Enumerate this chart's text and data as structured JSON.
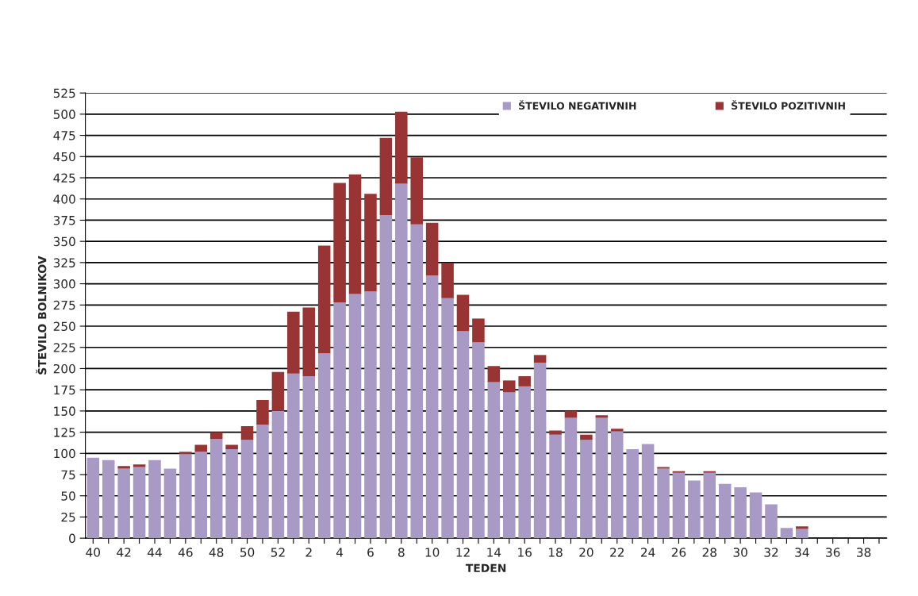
{
  "chart_data": {
    "type": "bar",
    "stacked": true,
    "xlabel": "TEDEN",
    "ylabel": "ŠTEVILO BOLNIKOV",
    "categories": [
      "40",
      null,
      "42",
      null,
      "44",
      null,
      "46",
      null,
      "48",
      null,
      "50",
      null,
      "52",
      null,
      "2",
      null,
      "4",
      null,
      "6",
      null,
      "8",
      null,
      "10",
      null,
      "12",
      null,
      "14",
      null,
      "16",
      null,
      "18",
      null,
      "20",
      null,
      "22",
      null,
      "24",
      null,
      "26",
      null,
      "28",
      null,
      "30",
      null,
      "32",
      null,
      "34",
      null,
      "36",
      null,
      "38",
      null
    ],
    "series": [
      {
        "name": "ŠTEVILO NEGATIVNIH",
        "color": "#a899c5",
        "values": [
          95,
          92,
          82,
          84,
          92,
          82,
          99,
          102,
          117,
          105,
          116,
          134,
          150,
          194,
          191,
          218,
          278,
          288,
          291,
          381,
          418,
          370,
          310,
          283,
          244,
          231,
          184,
          172,
          179,
          207,
          122,
          142,
          116,
          142,
          126,
          105,
          111,
          82,
          77,
          68,
          77,
          64,
          60,
          54,
          40,
          12,
          11,
          0,
          0,
          0,
          0,
          0
        ]
      },
      {
        "name": "ŠTEVILO POZITIVNIH",
        "color": "#983534",
        "values": [
          0,
          0,
          3,
          3,
          0,
          0,
          3,
          8,
          8,
          5,
          16,
          29,
          46,
          73,
          81,
          127,
          141,
          141,
          115,
          91,
          85,
          79,
          62,
          41,
          43,
          28,
          19,
          14,
          12,
          9,
          5,
          8,
          6,
          3,
          3,
          0,
          0,
          2,
          2,
          0,
          2,
          0,
          0,
          0,
          0,
          0,
          3,
          0,
          0,
          0,
          0,
          0
        ]
      }
    ],
    "ylim": [
      0,
      525
    ],
    "yticks": [
      0,
      25,
      50,
      75,
      100,
      125,
      150,
      175,
      200,
      225,
      250,
      275,
      300,
      325,
      350,
      375,
      400,
      425,
      450,
      475,
      500,
      525
    ],
    "grid": "y",
    "legend": "top right"
  }
}
